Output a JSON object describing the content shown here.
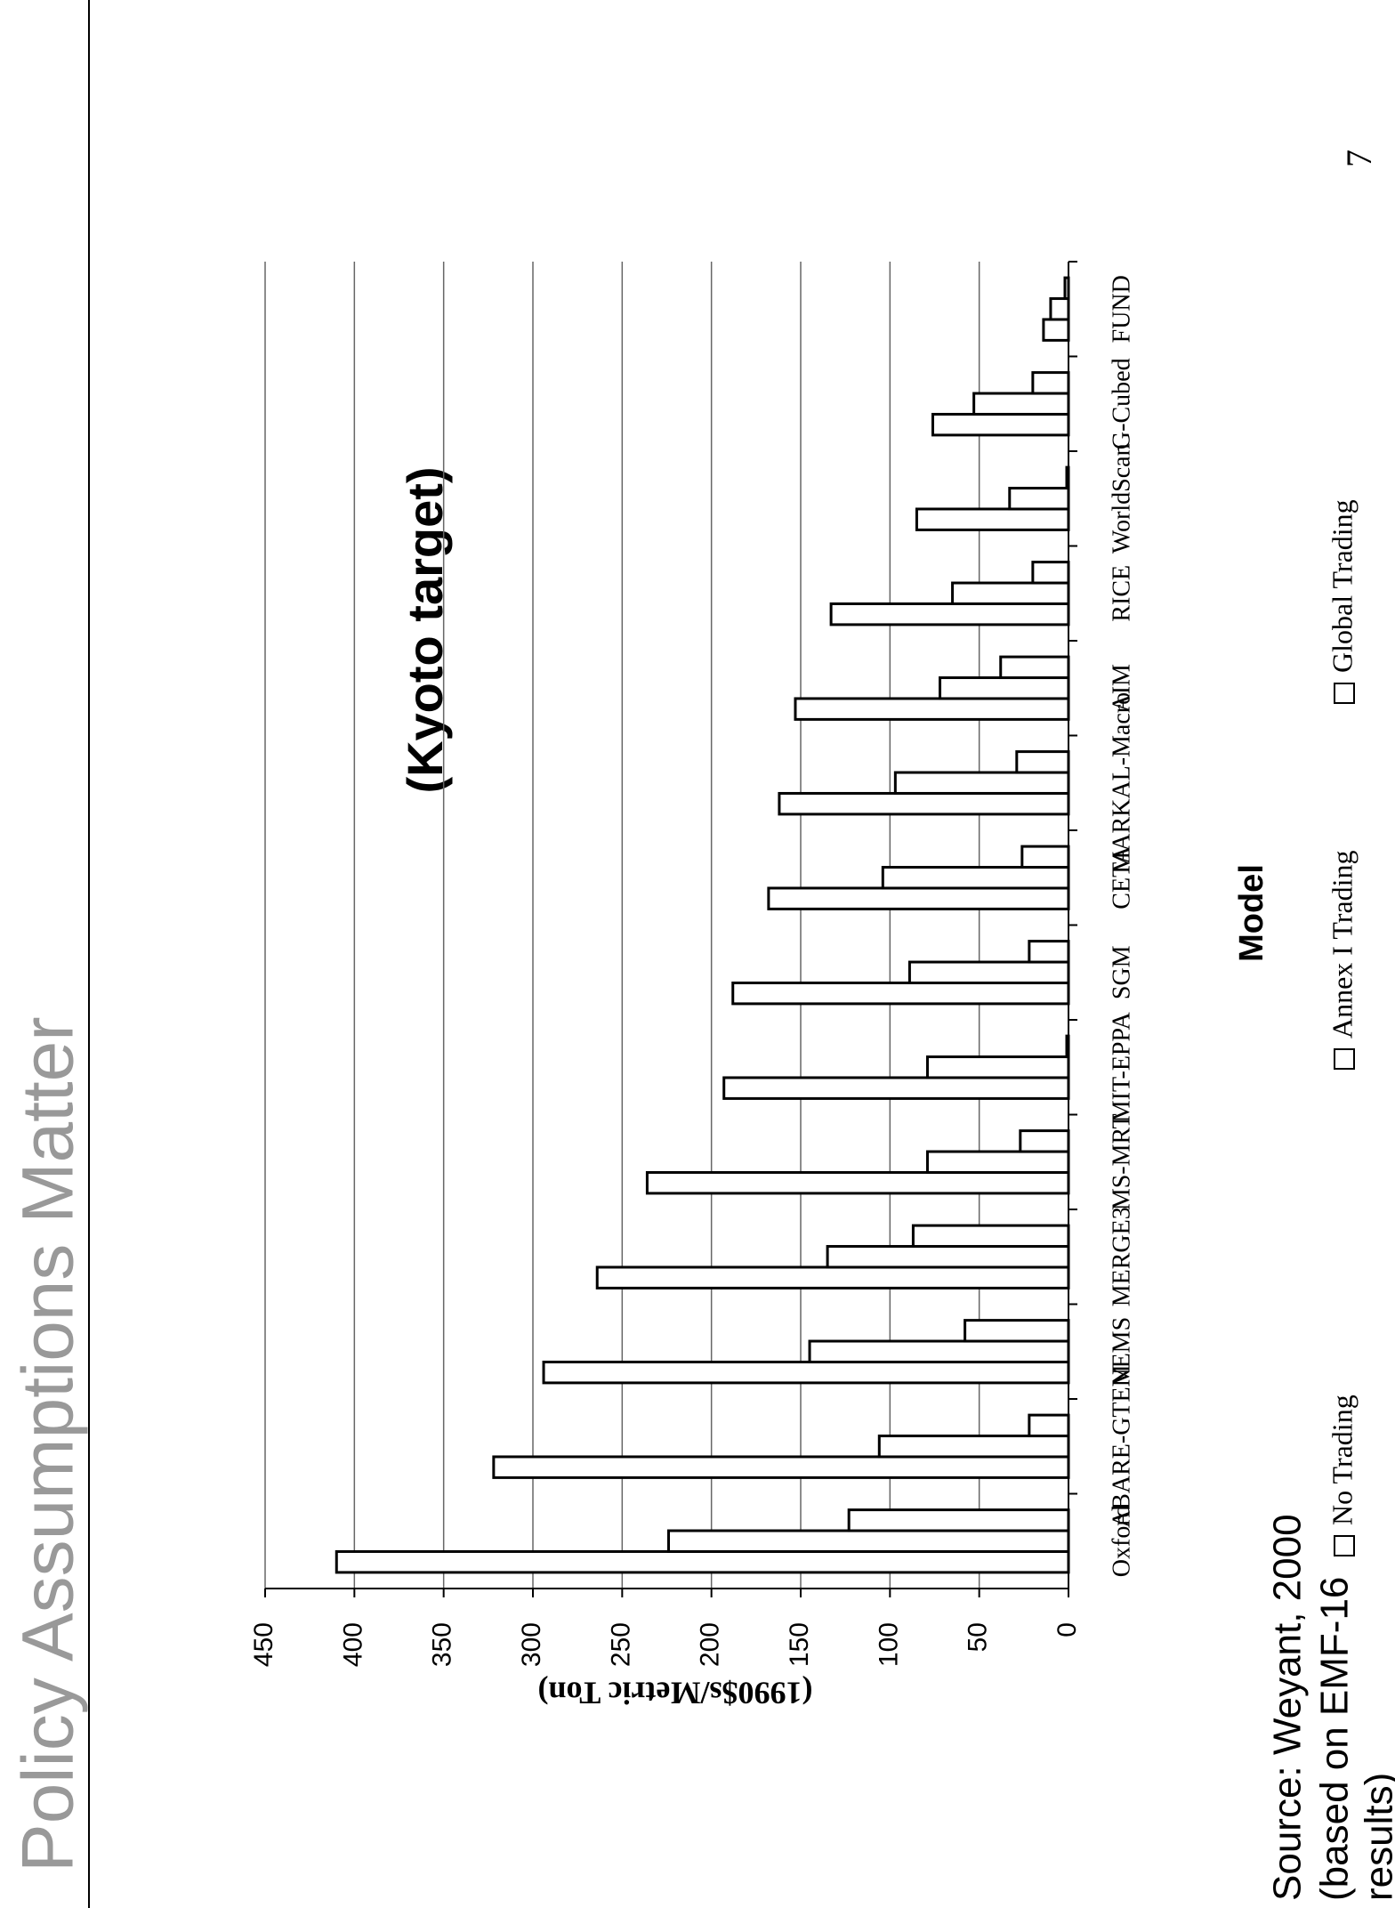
{
  "chart_data": {
    "type": "bar",
    "title": "Policy Assumptions Matter",
    "subtitle": "(Kyoto target)",
    "y_label": "(1990$s/Metric Ton)",
    "x_label": "Model",
    "source": [
      "Source:  Weyant, 2000",
      "(based on EMF-16",
      "results)"
    ],
    "page_number": "7",
    "categories": [
      "Oxford",
      "ABARE-GTEM",
      "NEMS",
      "MERGE3",
      "MS-MRT",
      "MIT-EPPA",
      "SGM",
      "CETA",
      "MARKAL-Macro",
      "AIM",
      "RICE",
      "WorldScan",
      "G-Cubed",
      "FUND"
    ],
    "series": [
      {
        "name": "No Trading",
        "color": "#ffffff",
        "values": [
          410,
          322,
          294,
          264,
          236,
          193,
          188,
          168,
          162,
          153,
          133,
          85,
          76,
          14
        ]
      },
      {
        "name": "Annex I Trading",
        "color": "#ffffff",
        "values": [
          224,
          106,
          145,
          135,
          79,
          79,
          89,
          104,
          97,
          72,
          65,
          33,
          53,
          10
        ]
      },
      {
        "name": "Global Trading",
        "color": "#ffffff",
        "values": [
          123,
          22,
          58,
          87,
          27,
          1,
          22,
          26,
          29,
          38,
          20,
          1,
          20,
          2
        ]
      }
    ],
    "ylim": [
      0,
      450
    ],
    "yticks": [
      0,
      50,
      100,
      150,
      200,
      250,
      300,
      350,
      400,
      450
    ],
    "grid": true
  }
}
